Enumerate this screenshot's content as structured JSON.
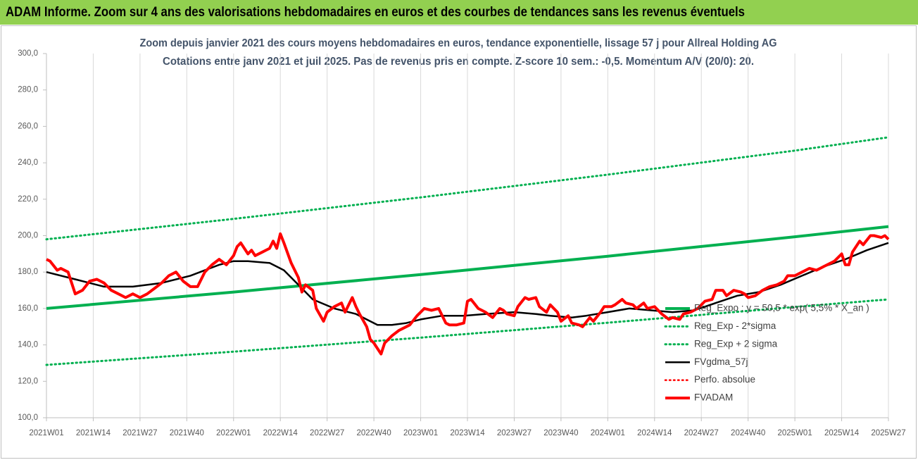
{
  "header": {
    "title": "ADAM Informe. Zoom sur 4 ans des valorisations hebdomadaires en euros et des courbes de tendances sans les revenus éventuels"
  },
  "chart_data": {
    "type": "line",
    "title": "Zoom depuis janvier 2021 des cours moyens hebdomadaires en euros, tendance exponentielle, lissage 57 j pour Allreal Holding AG",
    "subtitle": "Cotations entre janv 2021 et juil 2025. Pas de revenus pris en compte. Z-score 10 sem.: -0,5. Momentum A/V (20/0): 20.",
    "xlim": [
      0,
      234
    ],
    "xticks": [
      {
        "value": 0,
        "label": "2021W01"
      },
      {
        "value": 13,
        "label": "2021W14"
      },
      {
        "value": 26,
        "label": "2021W27"
      },
      {
        "value": 39,
        "label": "2021W40"
      },
      {
        "value": 52,
        "label": "2022W01"
      },
      {
        "value": 65,
        "label": "2022W14"
      },
      {
        "value": 78,
        "label": "2022W27"
      },
      {
        "value": 91,
        "label": "2022W40"
      },
      {
        "value": 104,
        "label": "2023W01"
      },
      {
        "value": 117,
        "label": "2023W14"
      },
      {
        "value": 130,
        "label": "2023W27"
      },
      {
        "value": 143,
        "label": "2023W40"
      },
      {
        "value": 156,
        "label": "2024W01"
      },
      {
        "value": 169,
        "label": "2024W14"
      },
      {
        "value": 182,
        "label": "2024W27"
      },
      {
        "value": 195,
        "label": "2024W40"
      },
      {
        "value": 208,
        "label": "2025W01"
      },
      {
        "value": 221,
        "label": "2025W14"
      },
      {
        "value": 234,
        "label": "2025W27"
      }
    ],
    "ylim": [
      100,
      300
    ],
    "yticks": [
      {
        "value": 100,
        "label": "100,0"
      },
      {
        "value": 120,
        "label": "120,0"
      },
      {
        "value": 140,
        "label": "140,0"
      },
      {
        "value": 160,
        "label": "160,0"
      },
      {
        "value": 180,
        "label": "180,0"
      },
      {
        "value": 200,
        "label": "200,0"
      },
      {
        "value": 220,
        "label": "220,0"
      },
      {
        "value": 240,
        "label": "240,0"
      },
      {
        "value": 260,
        "label": "260,0"
      },
      {
        "value": 280,
        "label": "280,0"
      },
      {
        "value": 300,
        "label": "300,0"
      }
    ],
    "grid": "x",
    "series": [
      {
        "name": "Reg_Expo : y = 50,5 * exp( 5,5% * X_an )",
        "color": "#00b050",
        "style": "solid",
        "width": 4,
        "x": [
          0,
          52,
          104,
          156,
          208,
          234
        ],
        "values": [
          160,
          169,
          178.6,
          188.7,
          199.4,
          205
        ]
      },
      {
        "name": "Reg_Exp - 2*sigma",
        "color": "#00b050",
        "style": "dotted",
        "width": 3,
        "x": [
          0,
          52,
          104,
          156,
          208,
          234
        ],
        "values": [
          129,
          136.3,
          144,
          152.2,
          160.8,
          165
        ]
      },
      {
        "name": "Reg_Exp + 2 sigma",
        "color": "#00b050",
        "style": "dotted",
        "width": 3,
        "x": [
          0,
          52,
          104,
          156,
          208,
          234
        ],
        "values": [
          198,
          209.2,
          221,
          233.5,
          246.7,
          254
        ]
      },
      {
        "name": "FVgdma_57j",
        "color": "#000000",
        "style": "solid",
        "width": 2.5,
        "x": [
          0,
          8,
          16,
          24,
          32,
          40,
          48,
          52,
          56,
          62,
          66,
          70,
          74,
          80,
          86,
          92,
          96,
          100,
          104,
          110,
          116,
          122,
          130,
          136,
          140,
          146,
          150,
          156,
          162,
          168,
          174,
          180,
          186,
          192,
          198,
          204,
          210,
          216,
          222,
          228,
          234
        ],
        "values": [
          180,
          176,
          172,
          172,
          174,
          178,
          184,
          186,
          186,
          185,
          181,
          173,
          165,
          160,
          157,
          151,
          151,
          152,
          154,
          156,
          156,
          157,
          158,
          157,
          156,
          155,
          156,
          158,
          160,
          159,
          158,
          159,
          163,
          167,
          169,
          173,
          178,
          183,
          187,
          192,
          196
        ]
      },
      {
        "name": "Perfo. absolue",
        "color": "#ff0000",
        "style": "dotted",
        "width": 2.5,
        "x": [],
        "values": []
      },
      {
        "name": "FVADAM",
        "color": "#ff0000",
        "style": "solid",
        "width": 4,
        "x": [
          0,
          1,
          3,
          4,
          6,
          8,
          10,
          12,
          14,
          16,
          18,
          20,
          22,
          24,
          26,
          28,
          30,
          32,
          34,
          36,
          38,
          40,
          42,
          44,
          46,
          48,
          50,
          52,
          53,
          54,
          56,
          57,
          58,
          60,
          62,
          63,
          64,
          65,
          66,
          68,
          70,
          71,
          72,
          74,
          75,
          77,
          78,
          80,
          82,
          83,
          85,
          86,
          87,
          89,
          90,
          91,
          93,
          94,
          96,
          98,
          100,
          101,
          103,
          104,
          105,
          107,
          109,
          111,
          112,
          114,
          116,
          117,
          118,
          120,
          122,
          124,
          126,
          127,
          128,
          130,
          131,
          133,
          134,
          136,
          137,
          139,
          140,
          142,
          143,
          145,
          146,
          148,
          149,
          151,
          152,
          154,
          155,
          157,
          158,
          160,
          161,
          163,
          164,
          166,
          167,
          169,
          170,
          171,
          173,
          174,
          176,
          177,
          179,
          181,
          183,
          185,
          186,
          188,
          189,
          191,
          193,
          194,
          195,
          197,
          199,
          201,
          203,
          205,
          206,
          208,
          210,
          212,
          214,
          216,
          218,
          219,
          221,
          222,
          223,
          224,
          226,
          227,
          229,
          230,
          232,
          233,
          234
        ],
        "values": [
          187,
          186,
          181,
          182,
          180,
          168,
          170,
          175,
          176,
          174,
          170,
          168,
          166,
          168,
          166,
          168,
          171,
          174,
          178,
          180,
          175,
          172,
          172,
          180,
          184,
          187,
          184,
          189,
          194,
          196,
          190,
          192,
          189,
          191,
          193,
          197,
          193,
          201,
          196,
          185,
          177,
          169,
          173,
          170,
          160,
          153,
          158,
          161,
          163,
          158,
          166,
          161,
          157,
          150,
          143,
          141,
          135,
          141,
          145,
          148,
          150,
          151,
          156,
          158,
          160,
          159,
          160,
          152,
          151,
          151,
          152,
          164,
          165,
          160,
          158,
          155,
          160,
          159,
          157,
          156,
          161,
          166,
          165,
          166,
          161,
          158,
          162,
          158,
          153,
          156,
          152,
          151,
          150,
          155,
          153,
          158,
          161,
          161,
          162,
          165,
          163,
          162,
          160,
          163,
          160,
          161,
          159,
          157,
          154,
          155,
          154,
          157,
          158,
          160,
          164,
          165,
          170,
          170,
          167,
          170,
          169,
          168,
          166,
          167,
          170,
          172,
          173,
          175,
          178,
          178,
          180,
          182,
          181,
          183,
          185,
          186,
          190,
          184,
          184,
          191,
          197,
          195,
          200,
          200,
          199,
          200,
          198
        ]
      }
    ]
  }
}
